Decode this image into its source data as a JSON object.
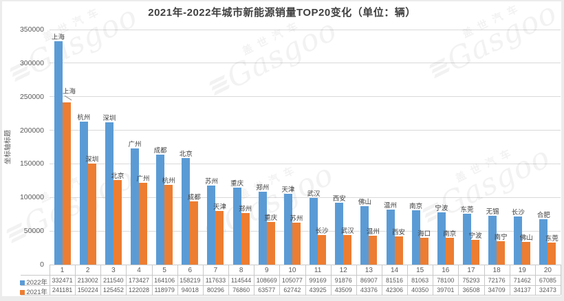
{
  "watermark": {
    "brand_cn": "盖世汽车",
    "brand_en": "Gasgoo"
  },
  "colors": {
    "bar_2022": "#5B9BD5",
    "bar_2021": "#ED7D31",
    "grid": "#d9d9d9",
    "table_border": "#c8c8c8"
  },
  "chart_data": {
    "type": "bar",
    "title": "2021年-2022年城市新能源销量TOP20变化（单位：辆）",
    "ylabel": "坐标轴标题",
    "xlabel": "",
    "ylim": [
      0,
      350000
    ],
    "ytick_step": 50000,
    "yticks": [
      "0",
      "50000",
      "100000",
      "150000",
      "200000",
      "250000",
      "300000",
      "350000"
    ],
    "grid": true,
    "legend_position": "table-left",
    "categories": [
      "1",
      "2",
      "3",
      "4",
      "5",
      "6",
      "7",
      "8",
      "9",
      "10",
      "11",
      "12",
      "13",
      "14",
      "15",
      "16",
      "17",
      "18",
      "19",
      "20"
    ],
    "series": [
      {
        "name": "2022年",
        "color": "#5B9BD5",
        "cities": [
          "上海",
          "杭州",
          "深圳",
          "广州",
          "成都",
          "北京",
          "苏州",
          "重庆",
          "郑州",
          "天津",
          "武汉",
          "西安",
          "佛山",
          "温州",
          "南京",
          "宁波",
          "东莞",
          "无锡",
          "长沙",
          "合肥"
        ],
        "values": [
          332471,
          213002,
          211540,
          173427,
          164106,
          158219,
          117633,
          114544,
          108669,
          105077,
          99169,
          91876,
          86907,
          81516,
          81063,
          78100,
          75293,
          72176,
          71462,
          67085
        ]
      },
      {
        "name": "2021年",
        "color": "#ED7D31",
        "cities": [
          "上海",
          "深圳",
          "北京",
          "广州",
          "杭州",
          "成都",
          "天津",
          "郑州",
          "重庆",
          "苏州",
          "长沙",
          "武汉",
          "温州",
          "西安",
          "海口",
          "南京",
          "宁波",
          "南宁",
          "佛山",
          "东莞"
        ],
        "values": [
          241181,
          150224,
          125452,
          122028,
          118979,
          94018,
          80296,
          76860,
          63577,
          62742,
          43925,
          43509,
          43376,
          42306,
          40350,
          39701,
          36508,
          34709,
          34137,
          32473
        ]
      }
    ]
  }
}
